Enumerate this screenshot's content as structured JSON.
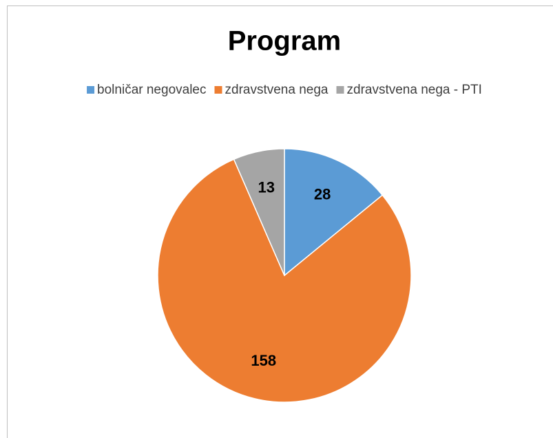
{
  "chart_data": {
    "type": "pie",
    "title": "Program",
    "categories": [
      "bolničar negovalec",
      "zdravstvena nega",
      "zdravstvena nega - PTI"
    ],
    "values": [
      28,
      158,
      13
    ],
    "colors": [
      "#5b9bd5",
      "#ed7d31",
      "#a5a5a5"
    ],
    "legend": "top"
  }
}
